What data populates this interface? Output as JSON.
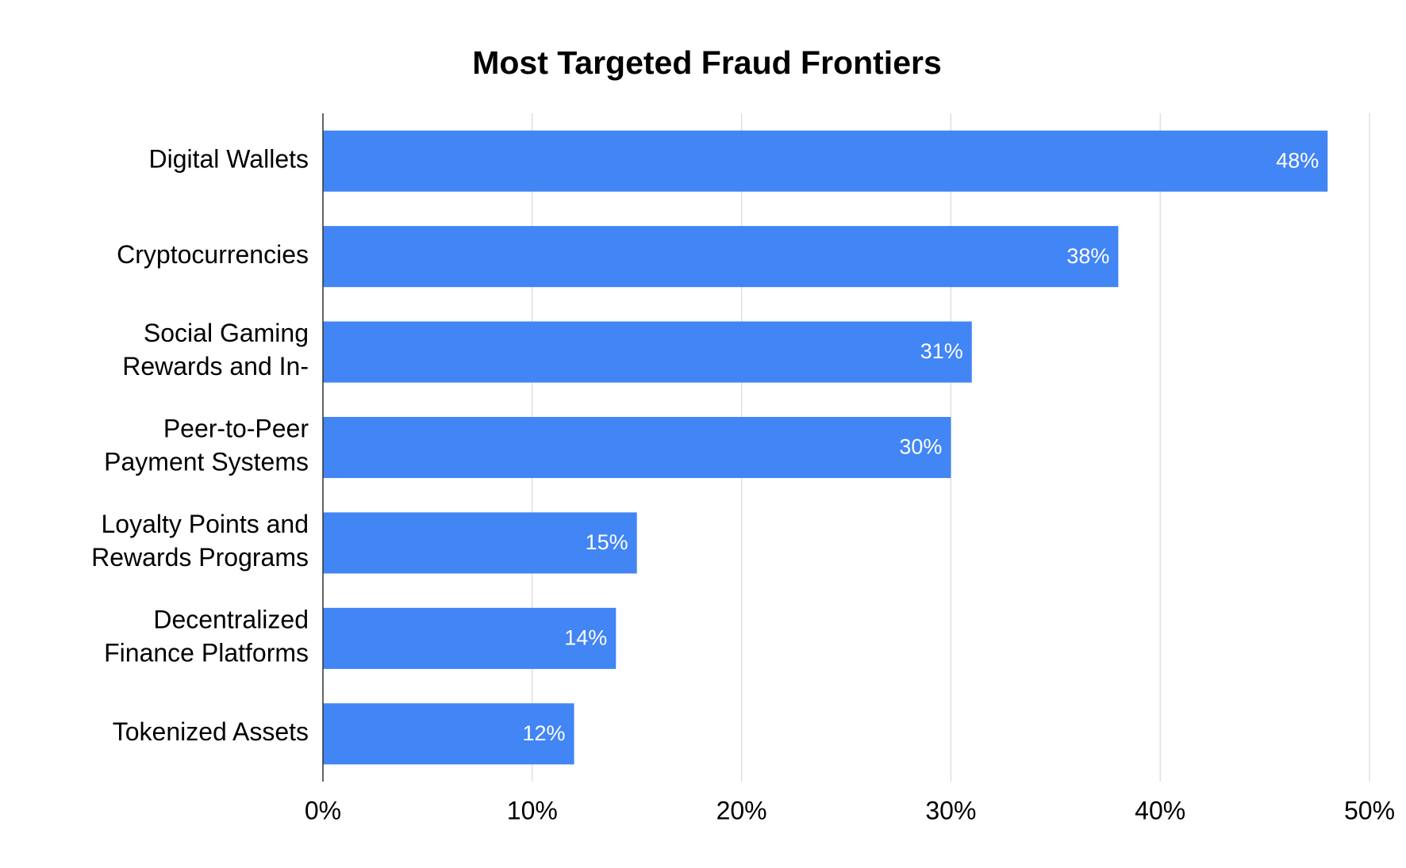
{
  "chart_data": {
    "type": "bar",
    "orientation": "horizontal",
    "title": "Most Targeted Fraud Frontiers",
    "categories": [
      "Digital Wallets",
      "Cryptocurrencies",
      "Social Gaming Rewards and In-",
      "Peer-to-Peer Payment Systems",
      "Loyalty Points and Rewards Programs",
      "Decentralized Finance Platforms",
      "Tokenized Assets"
    ],
    "values": [
      48,
      38,
      31,
      30,
      15,
      14,
      12
    ],
    "value_labels": [
      "48%",
      "38%",
      "31%",
      "30%",
      "15%",
      "14%",
      "12%"
    ],
    "color": "#4285f4",
    "xlim": [
      0,
      50
    ],
    "xticks": [
      {
        "value": 0,
        "label": "0%"
      },
      {
        "value": 10,
        "label": "10%"
      },
      {
        "value": 20,
        "label": "20%"
      },
      {
        "value": 30,
        "label": "30%"
      },
      {
        "value": 40,
        "label": "40%"
      },
      {
        "value": 50,
        "label": "50%"
      }
    ],
    "grid": true
  }
}
